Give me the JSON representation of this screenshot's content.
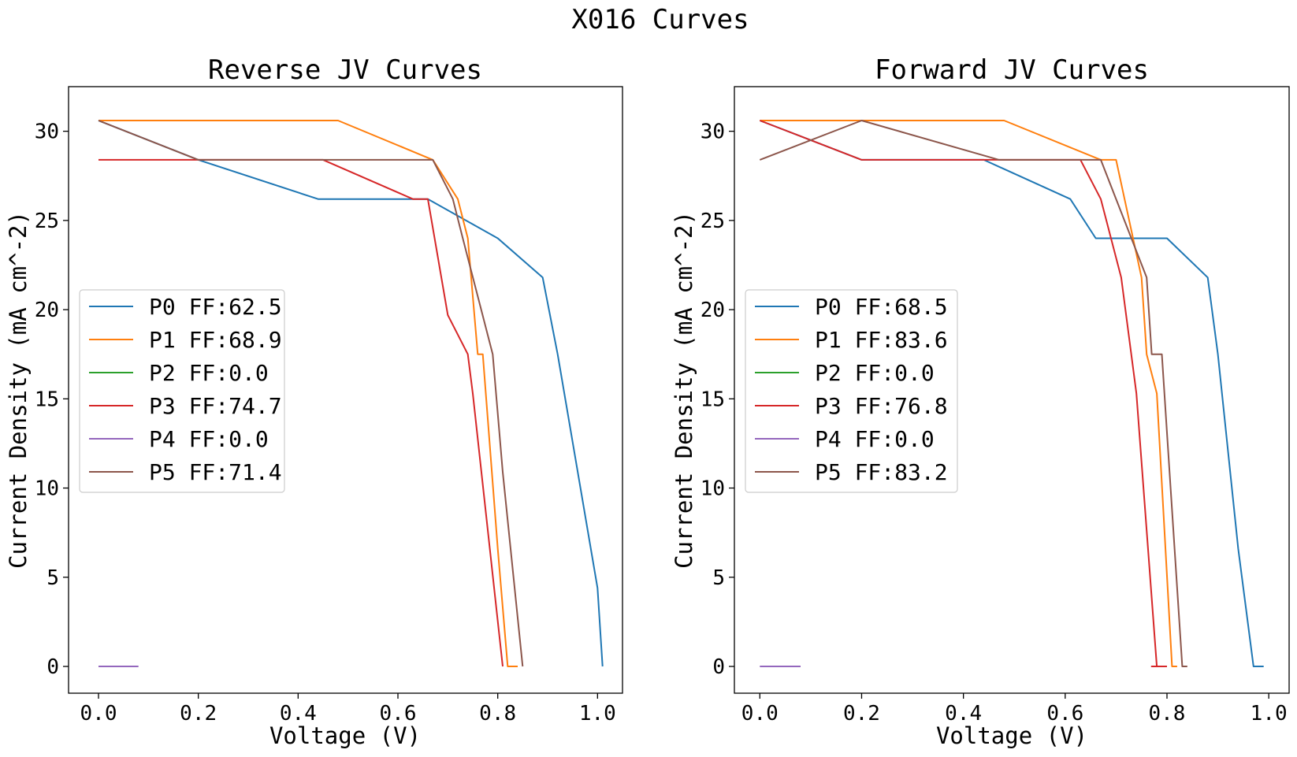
{
  "figure": {
    "title": "X016 Curves"
  },
  "chart_data": [
    {
      "type": "line",
      "title": "Reverse JV Curves",
      "xlabel": "Voltage (V)",
      "ylabel": "Current Density (mA cm^-2)",
      "xlim": [
        -0.06,
        1.05
      ],
      "ylim": [
        -1.5,
        32.5
      ],
      "xticks": [
        0.0,
        0.2,
        0.4,
        0.6,
        0.8,
        1.0
      ],
      "xtick_labels": [
        "0.0",
        "0.2",
        "0.4",
        "0.6",
        "0.8",
        "1.0"
      ],
      "yticks": [
        0,
        5,
        10,
        15,
        20,
        25,
        30
      ],
      "ytick_labels": [
        "0",
        "5",
        "10",
        "15",
        "20",
        "25",
        "30"
      ],
      "grid": false,
      "legend": {
        "placement": "center-left"
      },
      "series": [
        {
          "name": "P0 FF:62.5",
          "color": "#1f77b4",
          "x": [
            0.0,
            0.2,
            0.44,
            0.66,
            0.8,
            0.89,
            0.92,
            1.0,
            1.01
          ],
          "y": [
            30.6,
            28.4,
            26.2,
            26.2,
            24.0,
            21.8,
            17.5,
            4.4,
            0.0
          ]
        },
        {
          "name": "P1 FF:68.9",
          "color": "#ff7f0e",
          "x": [
            0.0,
            0.48,
            0.67,
            0.72,
            0.74,
            0.76,
            0.77,
            0.8,
            0.82,
            0.84
          ],
          "y": [
            30.6,
            30.6,
            28.4,
            26.2,
            24.0,
            17.5,
            17.5,
            6.6,
            0.0,
            0.0
          ]
        },
        {
          "name": "P2 FF:0.0",
          "color": "#2ca02c",
          "x": [],
          "y": []
        },
        {
          "name": "P3 FF:74.7",
          "color": "#d62728",
          "x": [
            0.0,
            0.2,
            0.45,
            0.63,
            0.66,
            0.7,
            0.74,
            0.75,
            0.81
          ],
          "y": [
            28.4,
            28.4,
            28.4,
            26.2,
            26.2,
            19.7,
            17.5,
            15.3,
            0.0
          ]
        },
        {
          "name": "P4 FF:0.0",
          "color": "#9467bd",
          "x": [
            0.0,
            0.08
          ],
          "y": [
            0.0,
            0.0
          ]
        },
        {
          "name": "P5 FF:71.4",
          "color": "#8c564b",
          "x": [
            0.0,
            0.2,
            0.67,
            0.71,
            0.73,
            0.79,
            0.81,
            0.85
          ],
          "y": [
            30.6,
            28.4,
            28.4,
            26.2,
            24.0,
            17.5,
            10.9,
            0.0
          ]
        }
      ]
    },
    {
      "type": "line",
      "title": "Forward JV Curves",
      "xlabel": "Voltage (V)",
      "ylabel": "Current Density (mA cm^-2)",
      "xlim": [
        -0.05,
        1.04
      ],
      "ylim": [
        -1.5,
        32.5
      ],
      "xticks": [
        0.0,
        0.2,
        0.4,
        0.6,
        0.8,
        1.0
      ],
      "xtick_labels": [
        "0.0",
        "0.2",
        "0.4",
        "0.6",
        "0.8",
        "1.0"
      ],
      "yticks": [
        0,
        5,
        10,
        15,
        20,
        25,
        30
      ],
      "ytick_labels": [
        "0",
        "5",
        "10",
        "15",
        "20",
        "25",
        "30"
      ],
      "grid": false,
      "legend": {
        "placement": "center-left"
      },
      "series": [
        {
          "name": "P0 FF:68.5",
          "color": "#1f77b4",
          "x": [
            0.0,
            0.2,
            0.44,
            0.61,
            0.66,
            0.8,
            0.88,
            0.9,
            0.94,
            0.97,
            0.99
          ],
          "y": [
            30.6,
            28.4,
            28.4,
            26.2,
            24.0,
            24.0,
            21.8,
            17.5,
            6.6,
            0.0,
            0.0
          ]
        },
        {
          "name": "P1 FF:83.6",
          "color": "#ff7f0e",
          "x": [
            0.0,
            0.48,
            0.67,
            0.7,
            0.75,
            0.76,
            0.78,
            0.81,
            0.82
          ],
          "y": [
            30.6,
            30.6,
            28.4,
            28.4,
            21.8,
            17.5,
            15.3,
            0.0,
            0.0
          ]
        },
        {
          "name": "P2 FF:0.0",
          "color": "#2ca02c",
          "x": [],
          "y": []
        },
        {
          "name": "P3 FF:76.8",
          "color": "#d62728",
          "x": [
            0.0,
            0.2,
            0.63,
            0.67,
            0.71,
            0.74,
            0.78,
            0.77,
            0.8
          ],
          "y": [
            30.6,
            28.4,
            28.4,
            26.2,
            21.8,
            15.3,
            0.0,
            0.0,
            0.0
          ]
        },
        {
          "name": "P4 FF:0.0",
          "color": "#9467bd",
          "x": [
            0.0,
            0.08
          ],
          "y": [
            0.0,
            0.0
          ]
        },
        {
          "name": "P5 FF:83.2",
          "color": "#8c564b",
          "x": [
            0.0,
            0.2,
            0.47,
            0.67,
            0.7,
            0.76,
            0.77,
            0.79,
            0.8,
            0.83,
            0.84
          ],
          "y": [
            28.4,
            30.6,
            28.4,
            28.4,
            26.2,
            21.8,
            17.5,
            17.5,
            13.1,
            0.0,
            0.0
          ]
        }
      ]
    }
  ]
}
